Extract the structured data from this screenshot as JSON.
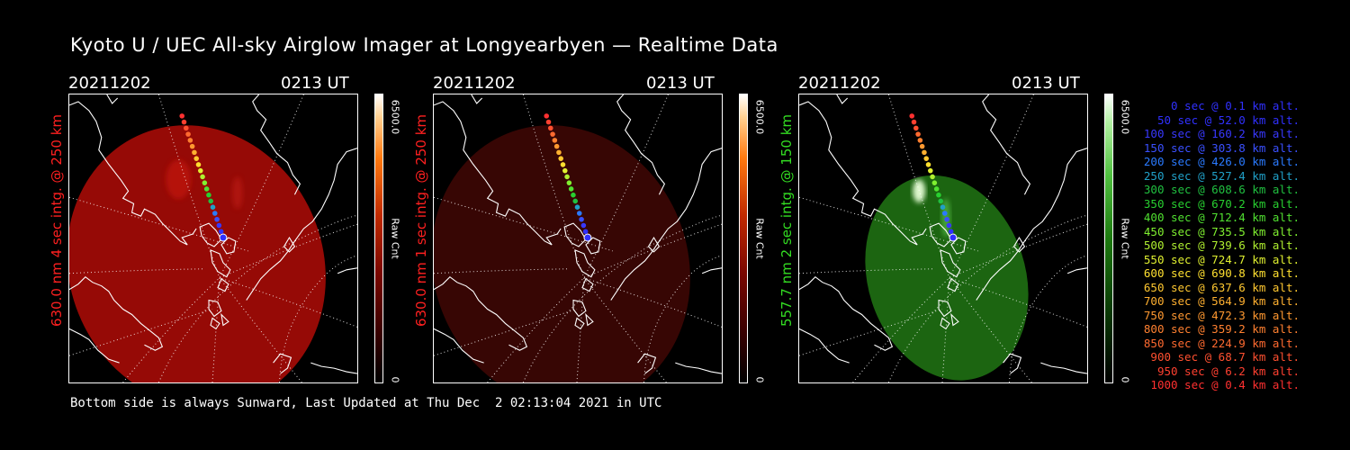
{
  "title": "Kyoto U / UEC All-sky Airglow Imager at Longyearbyen — Realtime Data",
  "footer": "Bottom side is always Sunward, Last Updated at Thu Dec  2 02:13:04 2021 in UTC",
  "panels": [
    {
      "date": "20211202",
      "time": "0213 UT",
      "ylabel": "630.0 nm 4 sec intg. @ 250 km",
      "label_color": "#ff2020",
      "colorbar_max": "6500.0",
      "colorbar_min": "0",
      "colorbar_label": "Raw Cnt",
      "glow_color": "#a30b06",
      "glow_opacity": 0.92,
      "cb_gradient": "linear-gradient(to top,#000 0%,#3a0000 18%,#7a0700 38%,#c02a00 58%,#ff7a10 78%,#ffd090 92%,#ffffff 100%)"
    },
    {
      "date": "20211202",
      "time": "0213 UT",
      "ylabel": "630.0 nm 1 sec intg. @ 250 km",
      "label_color": "#ff2020",
      "colorbar_max": "6500.0",
      "colorbar_min": "0",
      "colorbar_label": "Raw Cnt",
      "glow_color": "#3a0604",
      "glow_opacity": 0.95,
      "cb_gradient": "linear-gradient(to top,#000 0%,#3a0000 18%,#7a0700 38%,#c02a00 58%,#ff7a10 78%,#ffd090 92%,#ffffff 100%)"
    },
    {
      "date": "20211202",
      "time": "0213 UT",
      "ylabel": "557.7 nm 2 sec intg. @ 150 km",
      "label_color": "#33dd22",
      "colorbar_max": "6500.0",
      "colorbar_min": "0",
      "colorbar_label": "Raw Cnt",
      "glow_color": "#1d6a12",
      "glow_opacity": 0.95,
      "cb_gradient": "linear-gradient(to top,#000 0%,#0a3a05 25%,#1d7a10 50%,#50c040 72%,#b0f0a0 90%,#ffffff 100%)"
    }
  ],
  "trajectory": [
    {
      "time": "0 sec @",
      "alt": "0.1 km alt.",
      "color": "#3030ff"
    },
    {
      "time": "50 sec @",
      "alt": "52.0 km alt.",
      "color": "#3030ff"
    },
    {
      "time": "100 sec @",
      "alt": "160.2 km alt.",
      "color": "#3838ff"
    },
    {
      "time": "150 sec @",
      "alt": "303.8 km alt.",
      "color": "#3a50ff"
    },
    {
      "time": "200 sec @",
      "alt": "426.0 km alt.",
      "color": "#2a7aff"
    },
    {
      "time": "250 sec @",
      "alt": "527.4 km alt.",
      "color": "#20a0c8"
    },
    {
      "time": "300 sec @",
      "alt": "608.6 km alt.",
      "color": "#20c040"
    },
    {
      "time": "350 sec @",
      "alt": "670.2 km alt.",
      "color": "#28d030"
    },
    {
      "time": "400 sec @",
      "alt": "712.4 km alt.",
      "color": "#50e030"
    },
    {
      "time": "450 sec @",
      "alt": "735.5 km alt.",
      "color": "#80f030"
    },
    {
      "time": "500 sec @",
      "alt": "739.6 km alt.",
      "color": "#b0f030"
    },
    {
      "time": "550 sec @",
      "alt": "724.7 km alt.",
      "color": "#e0f030"
    },
    {
      "time": "600 sec @",
      "alt": "690.8 km alt.",
      "color": "#ffe030"
    },
    {
      "time": "650 sec @",
      "alt": "637.6 km alt.",
      "color": "#ffc830"
    },
    {
      "time": "700 sec @",
      "alt": "564.9 km alt.",
      "color": "#ffb030"
    },
    {
      "time": "750 sec @",
      "alt": "472.3 km alt.",
      "color": "#ff9830"
    },
    {
      "time": "800 sec @",
      "alt": "359.2 km alt.",
      "color": "#ff8030"
    },
    {
      "time": "850 sec @",
      "alt": "224.9 km alt.",
      "color": "#ff6a30"
    },
    {
      "time": "900 sec @",
      "alt": "68.7 km alt.",
      "color": "#ff5030"
    },
    {
      "time": "950 sec @",
      "alt": "6.2 km alt.",
      "color": "#ff4030"
    },
    {
      "time": "1000 sec @",
      "alt": "0.4 km alt.",
      "color": "#ff3030"
    }
  ]
}
